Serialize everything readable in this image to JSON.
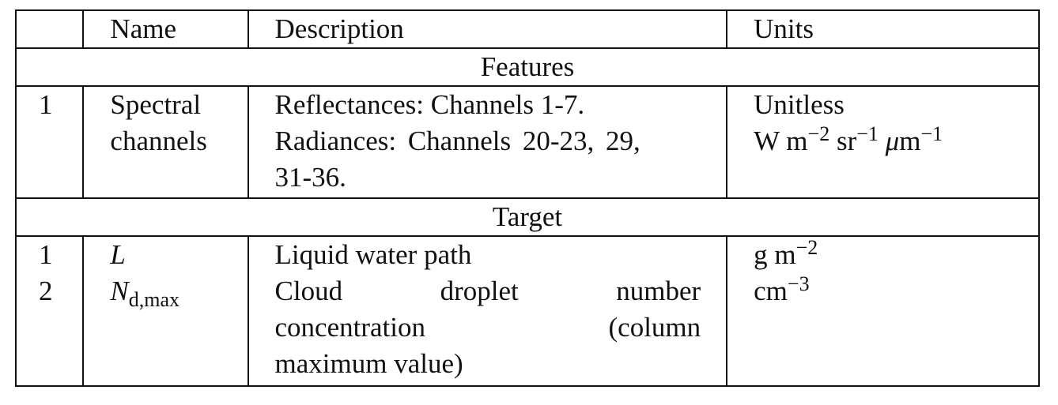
{
  "header": {
    "idx": "",
    "name": "Name",
    "description": "Description",
    "units": "Units"
  },
  "sections": {
    "features_title": "Features",
    "target_title": "Target"
  },
  "features": [
    {
      "idx": "1",
      "name_lines": [
        "Spectral",
        "channels"
      ],
      "desc_lines": [
        "Reflectances: Channels 1-7.",
        "Radiances: Channels 20-23, 29,",
        "31-36."
      ],
      "unit_lines": {
        "unitless": "Unitless",
        "w": "W",
        "m": "m",
        "m_exp": "−2",
        "sr": "sr",
        "sr_exp": "−1",
        "mu": "μ",
        "um": "m",
        "um_exp": "−1"
      }
    }
  ],
  "targets": [
    {
      "idx": "1",
      "name_symbol": "L",
      "desc_lines": [
        "Liquid water path"
      ],
      "unit": {
        "base": "g m",
        "exp": "−2"
      }
    },
    {
      "idx": "2",
      "name_symbol": "N",
      "name_sub": "d,max",
      "desc_lines": [
        "Cloud droplet number",
        "concentration (column",
        "maximum value)"
      ],
      "unit": {
        "base": "cm",
        "exp": "−3"
      }
    }
  ]
}
